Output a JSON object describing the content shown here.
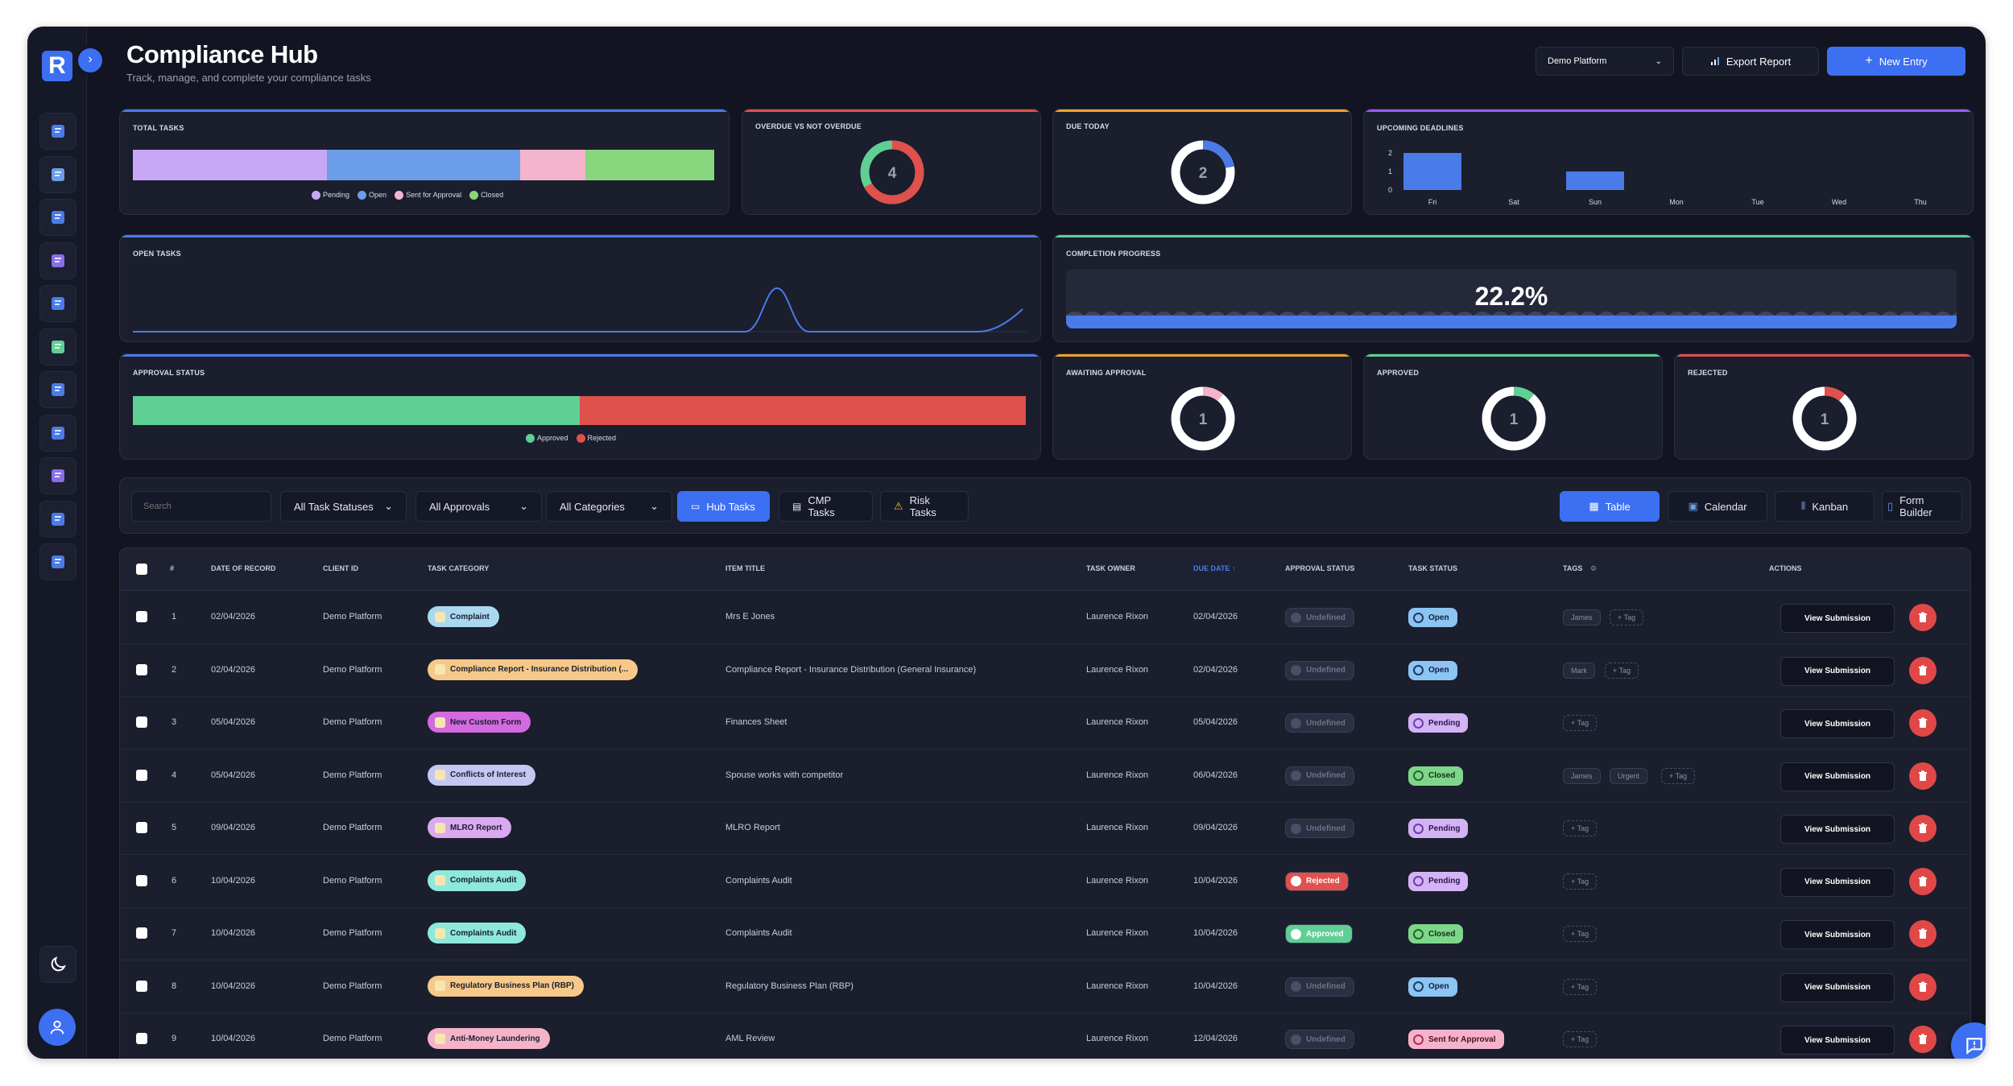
{
  "app": {
    "logo_letter": "R"
  },
  "header": {
    "title": "Compliance Hub",
    "subtitle": "Track, manage, and complete your compliance tasks",
    "platform_select": "Demo Platform",
    "export_label": "Export Report",
    "new_entry_label": "New Entry"
  },
  "sidebar": {
    "items": [
      "building-icon",
      "users-icon",
      "shield-icon",
      "clipboard-icon",
      "news-icon",
      "card-icon",
      "chart-icon",
      "form-icon",
      "list-icon",
      "target-icon",
      "monitor-icon"
    ]
  },
  "stats": {
    "total_tasks": {
      "title": "TOTAL TASKS",
      "segments": [
        {
          "label": "Pending",
          "value": 3,
          "color": "#c8a8f5"
        },
        {
          "label": "Open",
          "value": 3,
          "color": "#6b9de8"
        },
        {
          "label": "Sent for Approval",
          "value": 1,
          "color": "#f5b4cd"
        },
        {
          "label": "Closed",
          "value": 2,
          "color": "#88d67e"
        }
      ]
    },
    "overdue": {
      "title": "OVERDUE VS NOT OVERDUE",
      "value": "4",
      "overdue_fraction": 0.67
    },
    "due_today": {
      "title": "DUE TODAY",
      "value": "2",
      "fraction": 0.22
    },
    "upcoming": {
      "title": "UPCOMING DEADLINES",
      "days": [
        "Fri",
        "Sat",
        "Sun",
        "Mon",
        "Tue",
        "Wed",
        "Thu"
      ],
      "values": [
        2,
        0,
        1,
        0,
        0,
        0,
        0
      ],
      "yticks": [
        "2",
        "1",
        "0"
      ]
    },
    "open_tasks": {
      "title": "OPEN TASKS"
    },
    "completion": {
      "title": "COMPLETION PROGRESS",
      "value": "22.2%",
      "fraction": 0.222
    },
    "approval": {
      "title": "APPROVAL STATUS",
      "segments": [
        {
          "label": "Approved",
          "value": 1,
          "color": "#5fcf94"
        },
        {
          "label": "Rejected",
          "value": 1,
          "color": "#e0504c"
        }
      ]
    },
    "awaiting": {
      "title": "AWAITING APPROVAL",
      "value": "1",
      "color": "#f4b3c8",
      "fraction": 0.11
    },
    "approved": {
      "title": "APPROVED",
      "value": "1",
      "color": "#5fcf94",
      "fraction": 0.11
    },
    "rejected": {
      "title": "REJECTED",
      "value": "1",
      "color": "#e0504c",
      "fraction": 0.11
    }
  },
  "filters": {
    "search_placeholder": "Search",
    "task_status": "All Task Statuses",
    "approvals": "All Approvals",
    "categories": "All Categories",
    "hub_tasks": "Hub Tasks",
    "cmp_tasks": "CMP Tasks",
    "risk_tasks": "Risk Tasks",
    "views": [
      "Table",
      "Calendar",
      "Kanban",
      "Form Builder"
    ]
  },
  "table": {
    "headers": {
      "num": "#",
      "date": "DATE OF RECORD",
      "client": "CLIENT ID",
      "category": "TASK CATEGORY",
      "title": "ITEM TITLE",
      "owner": "TASK OWNER",
      "due": "DUE DATE ↑",
      "approval": "APPROVAL STATUS",
      "status": "TASK STATUS",
      "tags": "TAGS",
      "actions": "ACTIONS"
    },
    "view_label": "View Submission",
    "add_tag": "+ Tag",
    "rows": [
      {
        "num": "1",
        "date": "02/04/2026",
        "client": "Demo Platform",
        "category": "Complaint",
        "cat_color": "#a9d8ef",
        "title": "Mrs E Jones",
        "owner": "Laurence Rixon",
        "due": "02/04/2026",
        "approval": "Undefined",
        "status": "Open",
        "tags": [
          "James"
        ]
      },
      {
        "num": "2",
        "date": "02/04/2026",
        "client": "Demo Platform",
        "category": "Compliance Report - Insurance Distribution (...",
        "cat_color": "#f6c98a",
        "title": "Compliance Report - Insurance Distribution (General Insurance)",
        "owner": "Laurence Rixon",
        "due": "02/04/2026",
        "approval": "Undefined",
        "status": "Open",
        "tags": [
          "Mark"
        ]
      },
      {
        "num": "3",
        "date": "05/04/2026",
        "client": "Demo Platform",
        "category": "New Custom Form",
        "cat_color": "#d36ae0",
        "title": "Finances Sheet",
        "owner": "Laurence Rixon",
        "due": "05/04/2026",
        "approval": "Undefined",
        "status": "Pending",
        "tags": []
      },
      {
        "num": "4",
        "date": "05/04/2026",
        "client": "Demo Platform",
        "category": "Conflicts of Interest",
        "cat_color": "#c5c7f2",
        "title": "Spouse works with competitor",
        "owner": "Laurence Rixon",
        "due": "06/04/2026",
        "approval": "Undefined",
        "status": "Closed",
        "tags": [
          "James",
          "Urgent"
        ]
      },
      {
        "num": "5",
        "date": "09/04/2026",
        "client": "Demo Platform",
        "category": "MLRO Report",
        "cat_color": "#dba8f2",
        "title": "MLRO Report",
        "owner": "Laurence Rixon",
        "due": "09/04/2026",
        "approval": "Undefined",
        "status": "Pending",
        "tags": []
      },
      {
        "num": "6",
        "date": "10/04/2026",
        "client": "Demo Platform",
        "category": "Complaints Audit",
        "cat_color": "#8ee8dc",
        "title": "Complaints Audit",
        "owner": "Laurence Rixon",
        "due": "10/04/2026",
        "approval": "Rejected",
        "status": "Pending",
        "tags": []
      },
      {
        "num": "7",
        "date": "10/04/2026",
        "client": "Demo Platform",
        "category": "Complaints Audit",
        "cat_color": "#8ee8dc",
        "title": "Complaints Audit",
        "owner": "Laurence Rixon",
        "due": "10/04/2026",
        "approval": "Approved",
        "status": "Closed",
        "tags": []
      },
      {
        "num": "8",
        "date": "10/04/2026",
        "client": "Demo Platform",
        "category": "Regulatory Business Plan (RBP)",
        "cat_color": "#f6c98a",
        "title": "Regulatory Business Plan (RBP)",
        "owner": "Laurence Rixon",
        "due": "10/04/2026",
        "approval": "Undefined",
        "status": "Open",
        "tags": []
      },
      {
        "num": "9",
        "date": "10/04/2026",
        "client": "Demo Platform",
        "category": "Anti-Money Laundering",
        "cat_color": "#f4b3c8",
        "title": "AML Review",
        "owner": "Laurence Rixon",
        "due": "12/04/2026",
        "approval": "Undefined",
        "status": "Sent for Approval",
        "tags": []
      }
    ]
  },
  "colors": {
    "accent": "#3d6ff2",
    "danger": "#e04848",
    "bg": "#121521",
    "card": "#1a1e2d"
  }
}
